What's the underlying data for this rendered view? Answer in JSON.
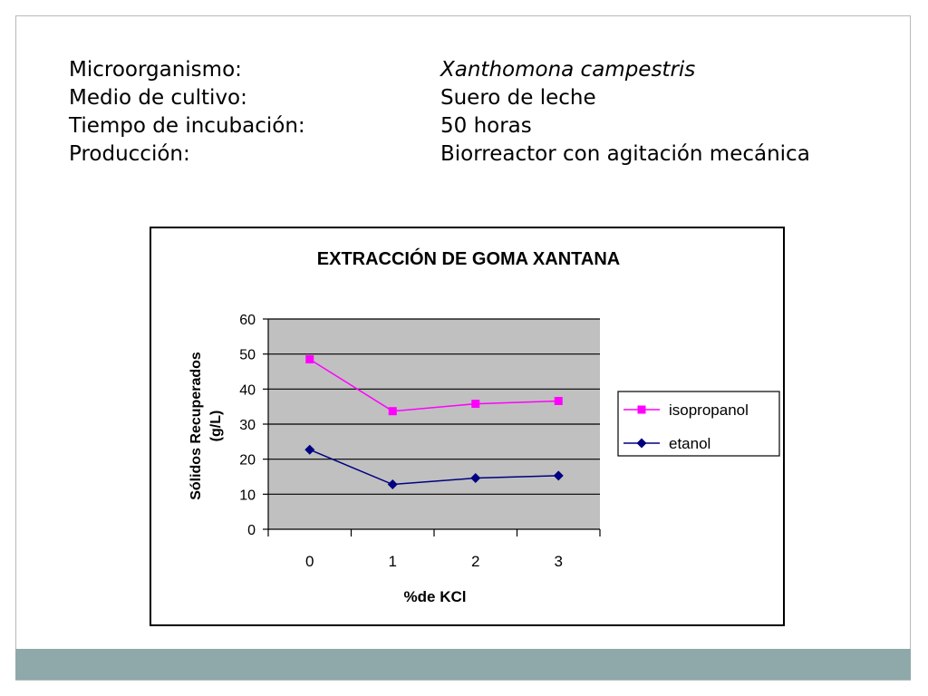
{
  "info": {
    "rows": [
      {
        "label": "Microorganismo:",
        "value": "Xanthomona campestris"
      },
      {
        "label": "Medio de cultivo:",
        "value": "Suero de leche"
      },
      {
        "label": "Tiempo de incubación:",
        "value": "50 horas"
      },
      {
        "label": "Producción:",
        "value": "Biorreactor con agitación mecánica"
      }
    ]
  },
  "chart_data": {
    "type": "line",
    "title": "EXTRACCIÓN DE GOMA XANTANA",
    "xlabel": "%de KCl",
    "ylabel_line1": "Sólidos Recuperados",
    "ylabel_line2": "(g/L)",
    "categories": [
      "0",
      "1",
      "2",
      "3"
    ],
    "y_ticks": [
      "0",
      "10",
      "20",
      "30",
      "40",
      "50",
      "60"
    ],
    "ylim": [
      0,
      60
    ],
    "grid": true,
    "legend_position": "right",
    "plot_background": "#c0c0c0",
    "series": [
      {
        "name": "isopropanol",
        "values": [
          48.5,
          33.7,
          35.8,
          36.6
        ],
        "color": "#ff00ff",
        "marker": "square"
      },
      {
        "name": "etanol",
        "values": [
          22.7,
          12.8,
          14.6,
          15.3
        ],
        "color": "#000080",
        "marker": "diamond"
      }
    ]
  }
}
